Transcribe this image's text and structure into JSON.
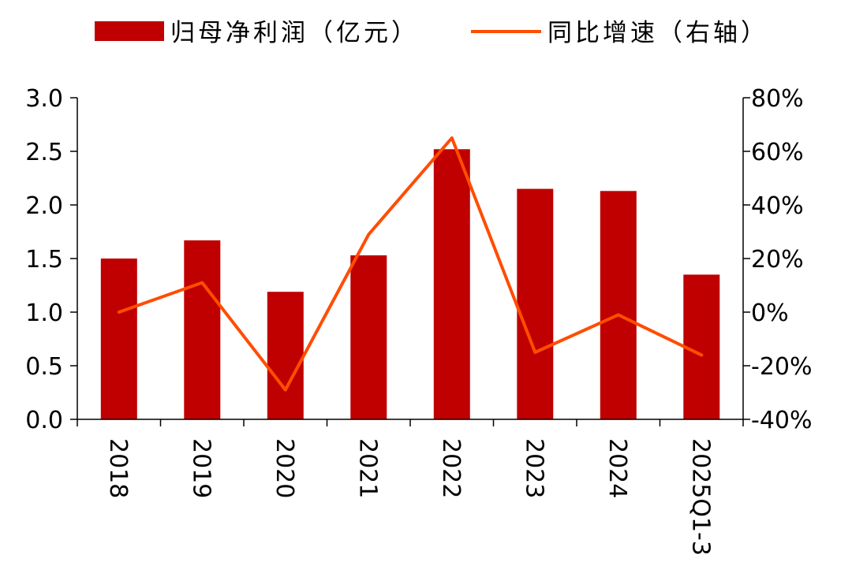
{
  "chart_data": {
    "type": "bar",
    "categories": [
      "2018",
      "2019",
      "2020",
      "2021",
      "2022",
      "2023",
      "2024",
      "2025Q1-3"
    ],
    "series": [
      {
        "name": "归母净利润（亿元）",
        "type": "bar",
        "axis": "left",
        "color": "#C00000",
        "values": [
          1.5,
          1.67,
          1.19,
          1.53,
          2.52,
          2.15,
          2.13,
          1.35
        ]
      },
      {
        "name": "同比增速（右轴）",
        "type": "line",
        "axis": "right",
        "color": "#FF4D00",
        "values": [
          0.0,
          0.11,
          -0.29,
          0.29,
          0.65,
          -0.15,
          -0.01,
          -0.16
        ]
      }
    ],
    "yleft": {
      "lim": [
        0,
        3.0
      ],
      "ticks": [
        "0.0",
        "0.5",
        "1.0",
        "1.5",
        "2.0",
        "2.5",
        "3.0"
      ]
    },
    "yright": {
      "lim": [
        -0.4,
        0.8
      ],
      "ticks": [
        "-40%",
        "-20%",
        "0%",
        "20%",
        "40%",
        "60%",
        "80%"
      ]
    },
    "grid": false,
    "legend": "top"
  }
}
